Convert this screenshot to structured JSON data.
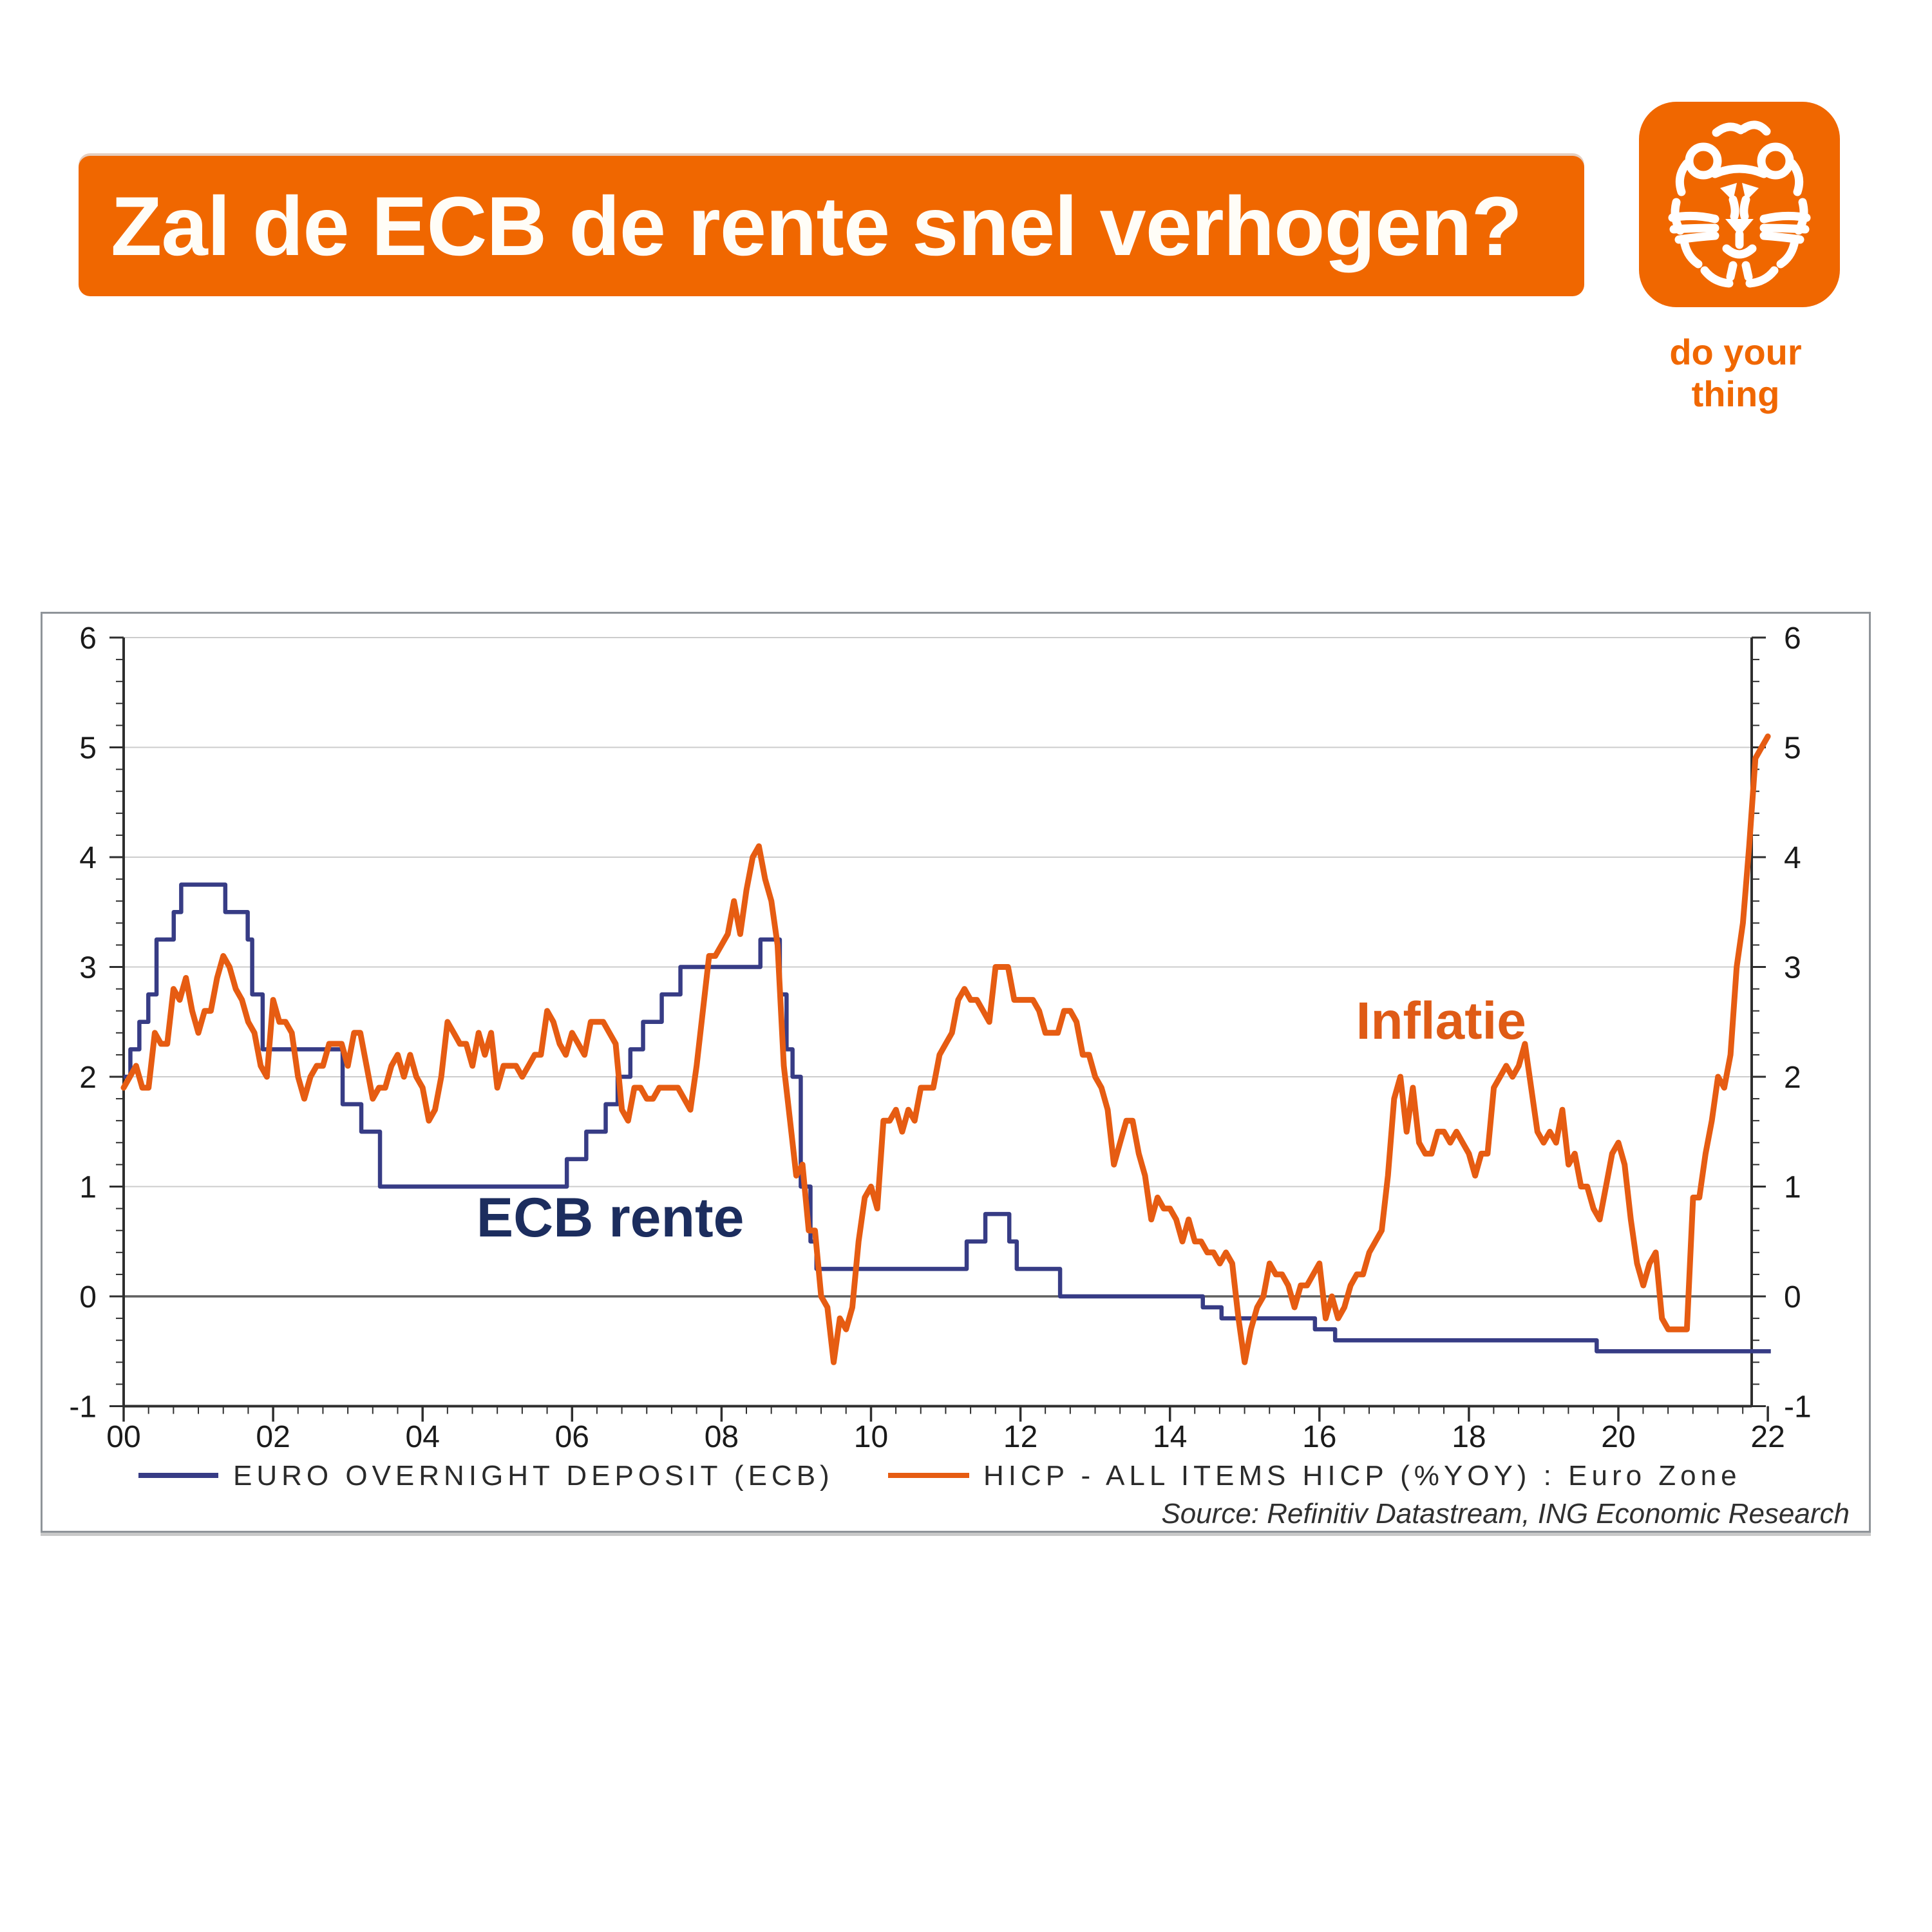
{
  "header": {
    "title": "Zal de ECB de rente snel verhogen?",
    "tagline": "do your thing",
    "logo": "ING lion logo"
  },
  "colors": {
    "brand_orange": "#f06700",
    "line_orange": "#e65c12",
    "line_navy": "#373c85",
    "label_navy": "#1c2d5e",
    "label_orange": "#df5b16",
    "axis": "#2e2e2e",
    "gridline": "#cccccc",
    "zero_line": "#5f5f5f",
    "tick_text": "#1a1a1a",
    "legend_text": "#2a2a2a",
    "source_text": "#303030"
  },
  "chart_data": {
    "type": "line",
    "title": "",
    "x_axis": {
      "min_year": 2000,
      "max_year_axis": 2022.32,
      "major_tick_years": [
        2000,
        2002,
        2004,
        2006,
        2008,
        2010,
        2012,
        2014,
        2016,
        2018,
        2020,
        2022
      ],
      "major_tick_labels": [
        "00",
        "02",
        "04",
        "06",
        "08",
        "10",
        "12",
        "14",
        "16",
        "18",
        "20",
        "22"
      ],
      "minor_tick_step_years": 0.3333
    },
    "y_axis": {
      "min": -1,
      "max": 6,
      "major_step": 1,
      "minor_step": 0.2,
      "tick_labels": [
        "-1",
        "0",
        "1",
        "2",
        "3",
        "4",
        "5",
        "6"
      ],
      "dual_sided": true,
      "grid_on_integers": true
    },
    "series": [
      {
        "name": "EURO OVERNIGHT DEPOSIT (ECB)",
        "style": "step",
        "color": "#373c85",
        "stroke_width": 6.5,
        "points": [
          [
            2000.0,
            2.0
          ],
          [
            2000.09,
            2.25
          ],
          [
            2000.21,
            2.5
          ],
          [
            2000.33,
            2.75
          ],
          [
            2000.44,
            3.25
          ],
          [
            2000.67,
            3.5
          ],
          [
            2000.77,
            3.75
          ],
          [
            2001.36,
            3.5
          ],
          [
            2001.66,
            3.25
          ],
          [
            2001.72,
            2.75
          ],
          [
            2001.86,
            2.25
          ],
          [
            2002.93,
            1.75
          ],
          [
            2003.18,
            1.5
          ],
          [
            2003.43,
            1.0
          ],
          [
            2005.93,
            1.25
          ],
          [
            2006.19,
            1.5
          ],
          [
            2006.45,
            1.75
          ],
          [
            2006.61,
            2.0
          ],
          [
            2006.78,
            2.25
          ],
          [
            2006.95,
            2.5
          ],
          [
            2007.2,
            2.75
          ],
          [
            2007.45,
            3.0
          ],
          [
            2008.52,
            3.25
          ],
          [
            2008.78,
            2.75
          ],
          [
            2008.87,
            2.25
          ],
          [
            2008.95,
            2.0
          ],
          [
            2009.06,
            1.0
          ],
          [
            2009.19,
            0.5
          ],
          [
            2009.27,
            0.25
          ],
          [
            2011.28,
            0.5
          ],
          [
            2011.53,
            0.75
          ],
          [
            2011.85,
            0.5
          ],
          [
            2011.95,
            0.25
          ],
          [
            2012.53,
            0.0
          ],
          [
            2014.44,
            -0.1
          ],
          [
            2014.69,
            -0.2
          ],
          [
            2015.94,
            -0.3
          ],
          [
            2016.21,
            -0.4
          ],
          [
            2019.71,
            -0.5
          ],
          [
            2022.04,
            -0.5
          ]
        ]
      },
      {
        "name": "HICP - ALL ITEMS HICP (%YOY) : Euro Zone",
        "style": "line",
        "color": "#e65c12",
        "stroke_width": 9,
        "start_year": 2000.0,
        "step_years": 0.0833333,
        "values": [
          1.9,
          2.0,
          2.1,
          1.9,
          1.9,
          2.4,
          2.3,
          2.3,
          2.8,
          2.7,
          2.9,
          2.6,
          2.4,
          2.6,
          2.6,
          2.9,
          3.1,
          3.0,
          2.8,
          2.7,
          2.5,
          2.4,
          2.1,
          2.0,
          2.7,
          2.5,
          2.5,
          2.4,
          2.0,
          1.8,
          2.0,
          2.1,
          2.1,
          2.3,
          2.3,
          2.3,
          2.1,
          2.4,
          2.4,
          2.1,
          1.8,
          1.9,
          1.9,
          2.1,
          2.2,
          2.0,
          2.2,
          2.0,
          1.9,
          1.6,
          1.7,
          2.0,
          2.5,
          2.4,
          2.3,
          2.3,
          2.1,
          2.4,
          2.2,
          2.4,
          1.9,
          2.1,
          2.1,
          2.1,
          2.0,
          2.1,
          2.2,
          2.2,
          2.6,
          2.5,
          2.3,
          2.2,
          2.4,
          2.3,
          2.2,
          2.5,
          2.5,
          2.5,
          2.4,
          2.3,
          1.7,
          1.6,
          1.9,
          1.9,
          1.8,
          1.8,
          1.9,
          1.9,
          1.9,
          1.9,
          1.8,
          1.7,
          2.1,
          2.6,
          3.1,
          3.1,
          3.2,
          3.3,
          3.6,
          3.3,
          3.7,
          4.0,
          4.1,
          3.8,
          3.6,
          3.2,
          2.1,
          1.6,
          1.1,
          1.2,
          0.6,
          0.6,
          0.0,
          -0.1,
          -0.6,
          -0.2,
          -0.3,
          -0.1,
          0.5,
          0.9,
          1.0,
          0.8,
          1.6,
          1.6,
          1.7,
          1.5,
          1.7,
          1.6,
          1.9,
          1.9,
          1.9,
          2.2,
          2.3,
          2.4,
          2.7,
          2.8,
          2.7,
          2.7,
          2.6,
          2.5,
          3.0,
          3.0,
          3.0,
          2.7,
          2.7,
          2.7,
          2.7,
          2.6,
          2.4,
          2.4,
          2.4,
          2.6,
          2.6,
          2.5,
          2.2,
          2.2,
          2.0,
          1.9,
          1.7,
          1.2,
          1.4,
          1.6,
          1.6,
          1.3,
          1.1,
          0.7,
          0.9,
          0.8,
          0.8,
          0.7,
          0.5,
          0.7,
          0.5,
          0.5,
          0.4,
          0.4,
          0.3,
          0.4,
          0.3,
          -0.2,
          -0.6,
          -0.3,
          -0.1,
          0.0,
          0.3,
          0.2,
          0.2,
          0.1,
          -0.1,
          0.1,
          0.1,
          0.2,
          0.3,
          -0.2,
          0.0,
          -0.2,
          -0.1,
          0.1,
          0.2,
          0.2,
          0.4,
          0.5,
          0.6,
          1.1,
          1.8,
          2.0,
          1.5,
          1.9,
          1.4,
          1.3,
          1.3,
          1.5,
          1.5,
          1.4,
          1.5,
          1.4,
          1.3,
          1.1,
          1.3,
          1.3,
          1.9,
          2.0,
          2.1,
          2.0,
          2.1,
          2.3,
          1.9,
          1.5,
          1.4,
          1.5,
          1.4,
          1.7,
          1.2,
          1.3,
          1.0,
          1.0,
          0.8,
          0.7,
          1.0,
          1.3,
          1.4,
          1.2,
          0.7,
          0.3,
          0.1,
          0.3,
          0.4,
          -0.2,
          -0.3,
          -0.3,
          -0.3,
          -0.3,
          0.9,
          0.9,
          1.3,
          1.6,
          2.0,
          1.9,
          2.2,
          3.0,
          3.4,
          4.1,
          4.9,
          5.0,
          5.1
        ]
      }
    ],
    "annotations": [
      {
        "text": "ECB rente",
        "x_year": 2004.72,
        "y_value": 0.545,
        "color": "#1c2d5e",
        "font_size": 86
      },
      {
        "text": "Inflatie",
        "x_year": 2016.49,
        "y_value": 2.346,
        "color": "#df5b16",
        "font_size": 82
      }
    ],
    "legend": {
      "position": "bottom",
      "entries": [
        {
          "label": "EURO OVERNIGHT DEPOSIT (ECB)",
          "color": "#373c85"
        },
        {
          "label": "HICP - ALL ITEMS HICP (%YOY) : Euro Zone",
          "color": "#e65c12"
        }
      ]
    },
    "source": "Source: Refinitiv Datastream, ING Economic Research"
  }
}
